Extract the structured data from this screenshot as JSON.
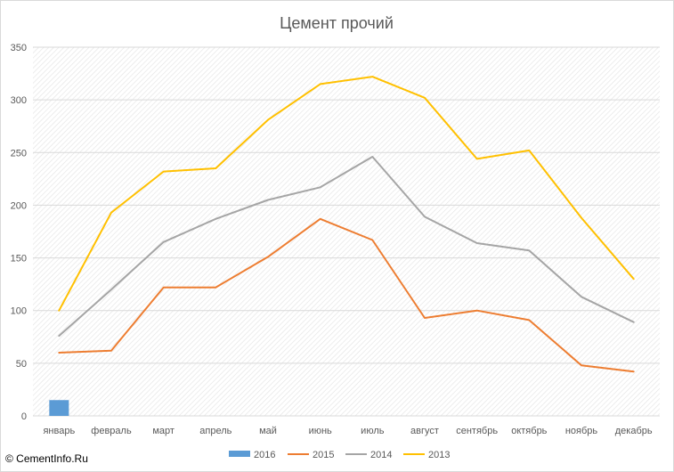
{
  "chart_data": {
    "type": "line",
    "title": "Цемент прочий",
    "categories": [
      "январь",
      "февраль",
      "март",
      "апрель",
      "май",
      "июнь",
      "июль",
      "август",
      "сентябрь",
      "октябрь",
      "ноябрь",
      "декабрь"
    ],
    "ylim": [
      0,
      350
    ],
    "yticks": [
      0,
      50,
      100,
      150,
      200,
      250,
      300,
      350
    ],
    "grid": true,
    "legend_position": "bottom",
    "series": [
      {
        "name": "2016",
        "kind": "bar",
        "color": "#5b9bd5",
        "values": [
          15,
          null,
          null,
          null,
          null,
          null,
          null,
          null,
          null,
          null,
          null,
          null
        ]
      },
      {
        "name": "2015",
        "kind": "line",
        "color": "#ed7d31",
        "values": [
          60,
          62,
          122,
          122,
          151,
          187,
          167,
          93,
          100,
          91,
          48,
          42
        ]
      },
      {
        "name": "2014",
        "kind": "line",
        "color": "#a5a5a5",
        "values": [
          76,
          120,
          165,
          187,
          205,
          217,
          246,
          189,
          164,
          157,
          113,
          89
        ]
      },
      {
        "name": "2013",
        "kind": "line",
        "color": "#ffc000",
        "values": [
          100,
          193,
          232,
          235,
          281,
          315,
          322,
          302,
          244,
          252,
          188,
          130
        ]
      }
    ]
  },
  "watermark": "© CementInfo.Ru"
}
